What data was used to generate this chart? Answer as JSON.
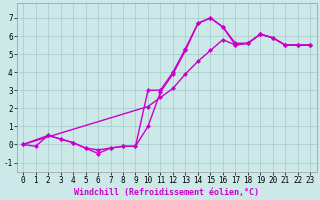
{
  "xlabel": "Windchill (Refroidissement éolien,°C)",
  "xlim": [
    -0.5,
    23.5
  ],
  "ylim": [
    -1.5,
    7.8
  ],
  "xticks": [
    0,
    1,
    2,
    3,
    4,
    5,
    6,
    7,
    8,
    9,
    10,
    11,
    12,
    13,
    14,
    15,
    16,
    17,
    18,
    19,
    20,
    21,
    22,
    23
  ],
  "yticks": [
    -1,
    0,
    1,
    2,
    3,
    4,
    5,
    6,
    7
  ],
  "background_color": "#cce8e8",
  "grid_color": "#aacfcf",
  "line_color": "#cc00cc",
  "line1_x": [
    0,
    1,
    2,
    3,
    4,
    5,
    6,
    7,
    8,
    9,
    10,
    11,
    12,
    13,
    14,
    15,
    16,
    17,
    18,
    19,
    20,
    21,
    22,
    23
  ],
  "line1_y": [
    0.0,
    -0.1,
    0.5,
    0.3,
    0.1,
    -0.2,
    -0.5,
    -0.2,
    -0.1,
    -0.1,
    1.0,
    2.9,
    3.9,
    5.2,
    6.7,
    7.0,
    6.5,
    5.5,
    5.6,
    6.1,
    5.9,
    5.5,
    5.5,
    5.5
  ],
  "line2_x": [
    0,
    2,
    3,
    4,
    5,
    6,
    7,
    8,
    9,
    10,
    11,
    12,
    13,
    14,
    15,
    16,
    17,
    18,
    19,
    20,
    21,
    22,
    23
  ],
  "line2_y": [
    0.0,
    0.5,
    0.3,
    0.1,
    -0.2,
    -0.3,
    -0.2,
    -0.1,
    -0.1,
    3.0,
    3.0,
    4.0,
    5.3,
    6.7,
    7.0,
    6.5,
    5.6,
    5.6,
    6.1,
    5.9,
    5.5,
    5.5,
    5.5
  ],
  "line3_x": [
    0,
    10,
    11,
    12,
    13,
    14,
    15,
    16,
    17,
    18,
    19,
    20,
    21,
    22,
    23
  ],
  "line3_y": [
    0.0,
    2.1,
    2.6,
    3.1,
    3.9,
    4.6,
    5.2,
    5.8,
    5.5,
    5.6,
    6.1,
    5.9,
    5.5,
    5.5,
    5.5
  ],
  "figsize": [
    3.2,
    2.0
  ],
  "dpi": 100,
  "marker": "D",
  "markersize": 2.5,
  "linewidth": 1.0,
  "tick_fontsize": 5.5,
  "xlabel_fontsize": 6.0
}
